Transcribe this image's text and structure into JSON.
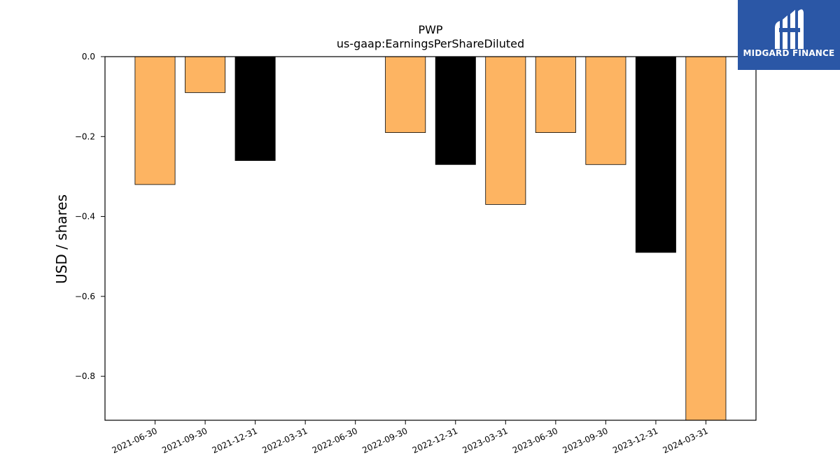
{
  "chart_data": {
    "type": "bar",
    "title": "PWP",
    "subtitle": "us-gaap:EarningsPerShareDiluted",
    "xlabel": "",
    "ylabel": "USD / shares",
    "ylim": [
      -0.91,
      0.0
    ],
    "yticks": [
      0.0,
      -0.2,
      -0.4,
      -0.6,
      -0.8
    ],
    "ytick_labels": [
      "0.0",
      "−0.2",
      "−0.4",
      "−0.6",
      "−0.8"
    ],
    "categories": [
      "2021-06-30",
      "2021-09-30",
      "2021-12-31",
      "2022-03-31",
      "2022-06-30",
      "2022-09-30",
      "2022-12-31",
      "2023-03-31",
      "2023-06-30",
      "2023-09-30",
      "2023-12-31",
      "2024-03-31"
    ],
    "values": [
      -0.32,
      -0.09,
      -0.26,
      0.0,
      0.0,
      -0.19,
      -0.27,
      -0.37,
      -0.19,
      -0.27,
      -0.49,
      -0.91
    ],
    "bar_colors": [
      "#fdb462",
      "#fdb462",
      "#000000",
      "#fdb462",
      "#fdb462",
      "#fdb462",
      "#000000",
      "#fdb462",
      "#fdb462",
      "#fdb462",
      "#000000",
      "#fdb462"
    ],
    "grid": false
  },
  "logo": {
    "text": "MIDGARD FINANCE",
    "background": "#2b57a6"
  }
}
